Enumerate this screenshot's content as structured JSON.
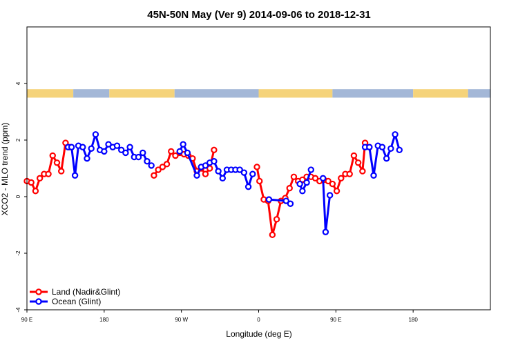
{
  "chart_data": {
    "type": "line",
    "title": "45N-50N May (Ver 9)   2014-09-06 to 2018-12-31",
    "xlabel": "Longitude (deg E)",
    "ylabel": "XCO2 - MLO trend (ppm)",
    "xlim": [
      -90,
      180
    ],
    "ylim": [
      -4,
      6
    ],
    "x_ticks": [
      {
        "value": -90,
        "label": "90 E"
      },
      {
        "value": -45,
        "label": "180"
      },
      {
        "value": 0,
        "label": "90 W"
      },
      {
        "value": 45,
        "label": "0"
      },
      {
        "value": 90,
        "label": "90 E"
      },
      {
        "value": 135,
        "label": "180"
      }
    ],
    "y_ticks": [
      {
        "value": -4,
        "label": "-4"
      },
      {
        "value": -2,
        "label": "-2"
      },
      {
        "value": 0,
        "label": "0"
      },
      {
        "value": 2,
        "label": "2"
      },
      {
        "value": 4,
        "label": "4"
      }
    ],
    "legend_position": "bottom-left",
    "land_strip": {
      "y_range": [
        3.5,
        3.8
      ],
      "land_color": "#f5d37a",
      "ocean_color": "#a3b7d7",
      "segments": [
        {
          "type": "land",
          "x0": -90,
          "x1": -63
        },
        {
          "type": "ocean",
          "x0": -63,
          "x1": -42
        },
        {
          "type": "land",
          "x0": -42,
          "x1": -4
        },
        {
          "type": "ocean",
          "x0": -4,
          "x1": 45
        },
        {
          "type": "land",
          "x0": 45,
          "x1": 88
        },
        {
          "type": "ocean",
          "x0": 88,
          "x1": 135
        },
        {
          "type": "land",
          "x0": 135,
          "x1": 167
        },
        {
          "type": "ocean",
          "x0": 167,
          "x1": 180
        }
      ]
    },
    "series": [
      {
        "name": "Land (Nadir&Glint)",
        "color": "#ff0000",
        "segments": [
          [
            [
              -90,
              0.55
            ],
            [
              -87.5,
              0.5
            ],
            [
              -85,
              0.2
            ],
            [
              -82.5,
              0.65
            ],
            [
              -80,
              0.8
            ],
            [
              -77.5,
              0.8
            ],
            [
              -75,
              1.45
            ],
            [
              -72.5,
              1.2
            ],
            [
              -70,
              0.9
            ],
            [
              -67.5,
              1.9
            ],
            [
              -65,
              1.75
            ]
          ],
          [
            [
              -16,
              0.75
            ],
            [
              -13.5,
              0.95
            ],
            [
              -11,
              1.05
            ],
            [
              -8.5,
              1.15
            ],
            [
              -6,
              1.6
            ],
            [
              -3.5,
              1.45
            ],
            [
              -1,
              1.55
            ],
            [
              1.5,
              1.5
            ],
            [
              4,
              1.45
            ],
            [
              6.5,
              1.35
            ],
            [
              9,
              0.9
            ],
            [
              11.5,
              1.0
            ],
            [
              14,
              0.8
            ],
            [
              16.5,
              1.0
            ],
            [
              19,
              1.65
            ]
          ],
          [
            [
              44,
              1.05
            ],
            [
              45.5,
              0.55
            ],
            [
              48,
              -0.1
            ],
            [
              50.5,
              -0.15
            ],
            [
              53,
              -1.35
            ],
            [
              55.5,
              -0.8
            ],
            [
              58,
              -0.15
            ],
            [
              60.5,
              -0.05
            ],
            [
              63,
              0.3
            ],
            [
              65.5,
              0.7
            ],
            [
              68,
              0.55
            ],
            [
              70.5,
              0.6
            ],
            [
              73,
              0.7
            ],
            [
              75.5,
              0.7
            ],
            [
              78,
              0.65
            ],
            [
              80.5,
              0.55
            ],
            [
              83,
              0.6
            ],
            [
              85.5,
              0.55
            ],
            [
              88,
              0.45
            ],
            [
              90.5,
              0.2
            ],
            [
              93,
              0.65
            ],
            [
              95.5,
              0.8
            ],
            [
              98,
              0.8
            ],
            [
              100.5,
              1.45
            ],
            [
              103,
              1.2
            ],
            [
              105.5,
              0.9
            ],
            [
              107,
              1.9
            ],
            [
              109.5,
              1.75
            ]
          ]
        ]
      },
      {
        "name": "Ocean (Glint)",
        "color": "#0000ff",
        "segments": [
          [
            [
              -66,
              1.75
            ],
            [
              -64,
              1.75
            ],
            [
              -62,
              0.75
            ],
            [
              -60,
              1.8
            ],
            [
              -57.5,
              1.75
            ],
            [
              -55,
              1.35
            ],
            [
              -52.5,
              1.7
            ],
            [
              -50,
              2.2
            ],
            [
              -47.5,
              1.65
            ],
            [
              -45,
              1.6
            ],
            [
              -42.5,
              1.85
            ],
            [
              -40,
              1.75
            ],
            [
              -37.5,
              1.8
            ],
            [
              -35,
              1.65
            ],
            [
              -32.5,
              1.55
            ],
            [
              -30,
              1.75
            ],
            [
              -27.5,
              1.4
            ],
            [
              -25,
              1.4
            ],
            [
              -22.5,
              1.55
            ],
            [
              -20,
              1.25
            ],
            [
              -17.5,
              1.1
            ]
          ],
          [
            [
              -1,
              1.6
            ],
            [
              1,
              1.85
            ],
            [
              3.5,
              1.55
            ],
            [
              9,
              0.75
            ],
            [
              11.5,
              1.05
            ],
            [
              14,
              1.1
            ],
            [
              16.5,
              1.2
            ],
            [
              19,
              1.25
            ],
            [
              21.5,
              0.9
            ],
            [
              24,
              0.65
            ],
            [
              26.5,
              0.95
            ],
            [
              29,
              0.95
            ],
            [
              31.5,
              0.95
            ],
            [
              34,
              0.95
            ],
            [
              36.5,
              0.85
            ],
            [
              39,
              0.35
            ],
            [
              41.5,
              0.8
            ]
          ],
          [
            [
              51,
              -0.1
            ],
            [
              61,
              -0.15
            ],
            [
              63.5,
              -0.25
            ]
          ],
          [
            [
              69,
              0.45
            ],
            [
              70.5,
              0.2
            ],
            [
              73,
              0.5
            ],
            [
              75.5,
              0.95
            ]
          ],
          [
            [
              82.5,
              0.65
            ],
            [
              84,
              -1.25
            ],
            [
              86.5,
              0.05
            ]
          ],
          [
            [
              107,
              1.75
            ],
            [
              109.5,
              1.75
            ],
            [
              112,
              0.75
            ],
            [
              114.5,
              1.8
            ],
            [
              117,
              1.75
            ],
            [
              119.5,
              1.35
            ],
            [
              122,
              1.7
            ],
            [
              124.5,
              2.2
            ],
            [
              127,
              1.65
            ]
          ]
        ]
      }
    ]
  }
}
